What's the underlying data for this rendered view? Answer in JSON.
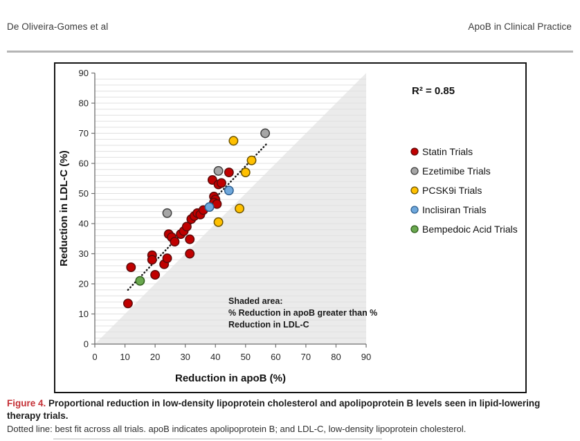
{
  "header": {
    "left": "De Oliveira-Gomes et al",
    "right": "ApoB in Clinical Practice"
  },
  "caption": {
    "label": "Figure 4.",
    "title": "Proportional reduction in low-density lipoprotein cholesterol and apolipoprotein B levels seen in lipid-lowering therapy trials.",
    "note": "Dotted line: best fit across all trials. apoB indicates apolipoprotein B; and LDL-C, low-density lipoprotein cholesterol."
  },
  "chart_data": {
    "type": "scatter",
    "title": "",
    "xlabel": "Reduction in apoB (%)",
    "ylabel": "Reduction in LDL-C (%)",
    "xlim": [
      0,
      90
    ],
    "ylim": [
      0,
      90
    ],
    "xticks": [
      0,
      10,
      20,
      30,
      40,
      50,
      60,
      70,
      80,
      90
    ],
    "yticks": [
      0,
      10,
      20,
      30,
      40,
      50,
      60,
      70,
      80,
      90
    ],
    "grid": "horizontal minor gridlines every 2 units",
    "legend_position": "right",
    "r_squared": "R² = 0.85",
    "annotation_lines": [
      "Shaded area:",
      "% Reduction in apoB greater than %",
      "Reduction in LDL-C"
    ],
    "shaded_region": {
      "vertices": [
        [
          0,
          0
        ],
        [
          90,
          0
        ],
        [
          90,
          90
        ]
      ],
      "fill": "#ebebeb"
    },
    "trendline": {
      "style": "dotted",
      "from": [
        11,
        18
      ],
      "to": [
        57,
        66.5
      ],
      "color": "#1a1a1a"
    },
    "series": [
      {
        "id": "statin",
        "name": "Statin Trials",
        "color": "#c00000",
        "stroke": "#5c0a0a",
        "points": [
          [
            11,
            13.5
          ],
          [
            12,
            25.5
          ],
          [
            19,
            29.5
          ],
          [
            19,
            28
          ],
          [
            20,
            23
          ],
          [
            23,
            26.5
          ],
          [
            24,
            28.5
          ],
          [
            24.5,
            36.5
          ],
          [
            25.5,
            35.5
          ],
          [
            26.5,
            34
          ],
          [
            28.5,
            36.5
          ],
          [
            29.5,
            37.5
          ],
          [
            30.5,
            39
          ],
          [
            31.5,
            34.8
          ],
          [
            31.5,
            30
          ],
          [
            32,
            41.5
          ],
          [
            33,
            42.5
          ],
          [
            34,
            43.5
          ],
          [
            35,
            43
          ],
          [
            36,
            44.5
          ],
          [
            39,
            54.5
          ],
          [
            41,
            53
          ],
          [
            42,
            53.5
          ],
          [
            44.5,
            57
          ],
          [
            39.5,
            49
          ],
          [
            40,
            48
          ],
          [
            39.5,
            47
          ],
          [
            40.5,
            46.5
          ]
        ]
      },
      {
        "id": "ezetimibe",
        "name": "Ezetimibe Trials",
        "color": "#a6a6a6",
        "stroke": "#3f3f3f",
        "points": [
          [
            24,
            43.5
          ],
          [
            41,
            57.5
          ],
          [
            56.5,
            70
          ]
        ]
      },
      {
        "id": "pcsk9i",
        "name": "PCSK9i Trials",
        "color": "#ffc000",
        "stroke": "#6b5200",
        "points": [
          [
            41,
            40.5
          ],
          [
            46,
            67.5
          ],
          [
            48,
            45
          ],
          [
            50,
            57
          ],
          [
            52,
            61
          ]
        ]
      },
      {
        "id": "inclisiran",
        "name": "Inclisiran Trials",
        "color": "#6fa8dc",
        "stroke": "#2e5f8f",
        "points": [
          [
            38,
            45.5
          ],
          [
            44.5,
            51
          ]
        ]
      },
      {
        "id": "bempedoic",
        "name": "Bempedoic Acid Trials",
        "color": "#6aa84f",
        "stroke": "#2f5d1c",
        "points": [
          [
            15,
            21
          ]
        ]
      }
    ]
  }
}
